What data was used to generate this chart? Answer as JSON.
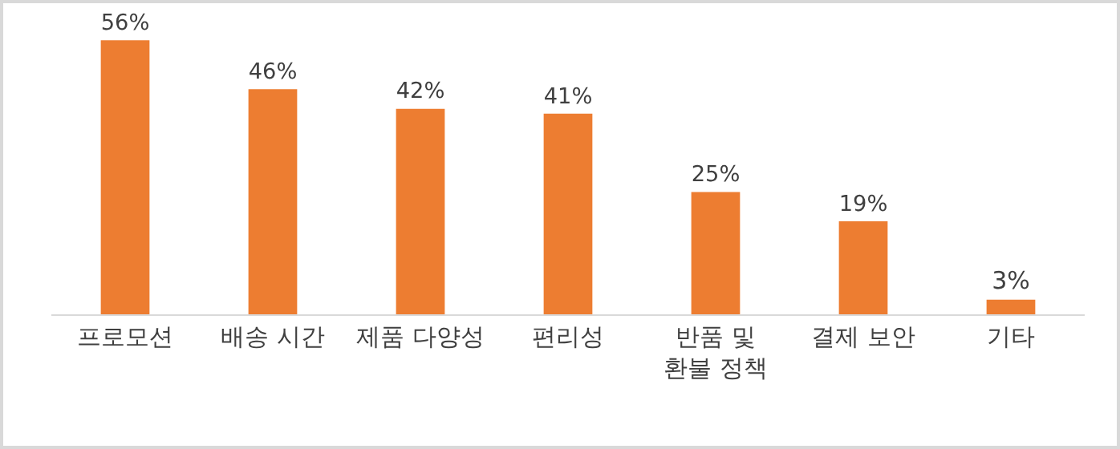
{
  "chart_data": {
    "type": "bar",
    "categories": [
      "프로모션",
      "배송 시간",
      "제품 다양성",
      "편리성",
      "반품 및 환불 정책",
      "결제 보안",
      "기타"
    ],
    "values": [
      56,
      46,
      42,
      41,
      25,
      19,
      3
    ],
    "value_labels": [
      "56%",
      "46%",
      "42%",
      "41%",
      "25%",
      "19%",
      "3%"
    ],
    "color": "#ed7d31",
    "grid": false,
    "legend": false,
    "tick_labels": "x"
  }
}
